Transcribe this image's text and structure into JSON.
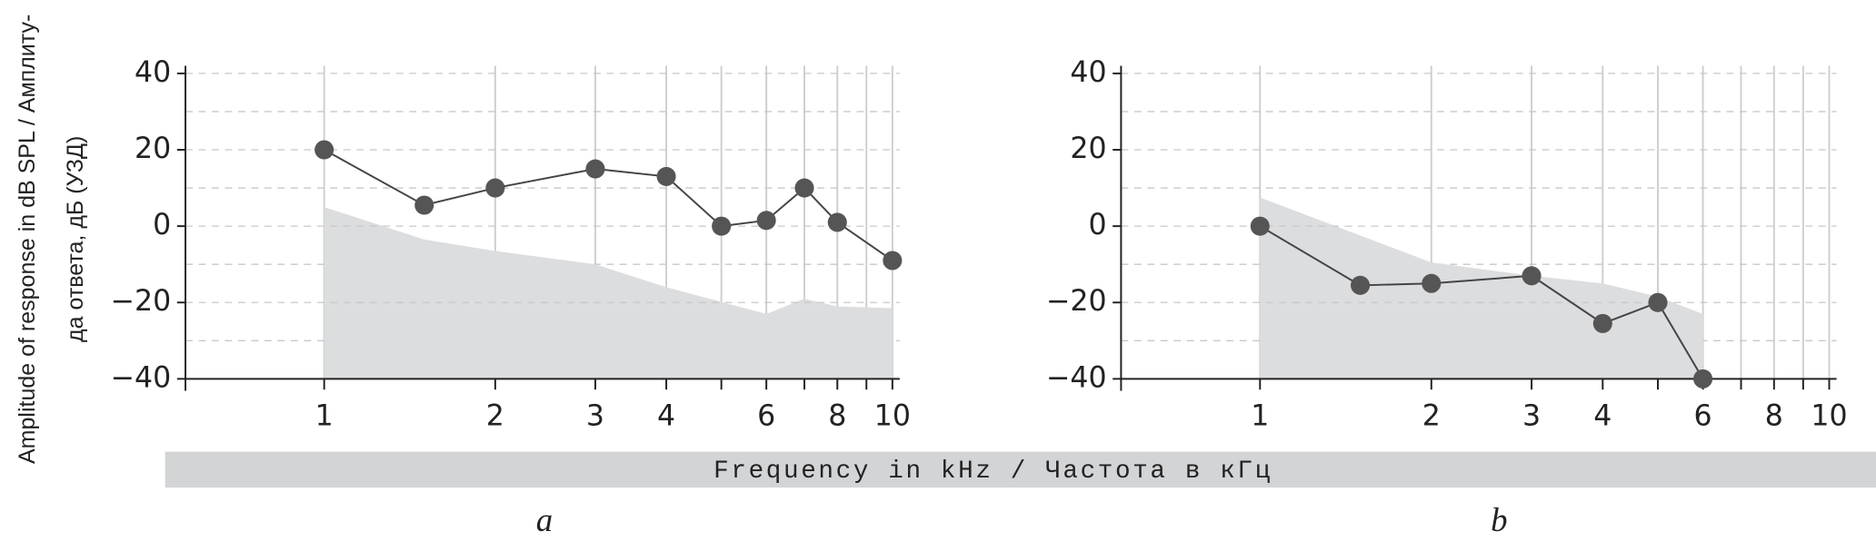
{
  "ylabel": [
    "Amplitude of response in dB SPL / Амплиту-",
    "да ответа, дБ (УЗД)"
  ],
  "xlabel": "Frequency in kHz / Частота в кГц",
  "chart_data": [
    {
      "type": "line",
      "label": "a",
      "log_x": true,
      "grid": true,
      "xlim": [
        0.57,
        10.3
      ],
      "xticks": [
        1,
        2,
        3,
        4,
        6,
        8,
        10
      ],
      "xminor": [
        5,
        7,
        9
      ],
      "ylim": [
        -40,
        42
      ],
      "yticks": [
        40,
        20,
        0,
        {
          "value": -20,
          "label": "−20"
        },
        {
          "value": -40,
          "label": "−40"
        }
      ],
      "yminor": [
        30,
        10,
        -10,
        -30
      ],
      "series": [
        {
          "kind": "area",
          "color": "#dcdddf",
          "x": [
            1,
            1.5,
            2,
            3,
            4,
            6,
            7,
            8,
            10
          ],
          "values": [
            5,
            -3.5,
            -6.5,
            -10,
            -16,
            -23,
            -19,
            -21,
            -21.5
          ]
        },
        {
          "kind": "line",
          "color": "#555555",
          "x": [
            1,
            1.5,
            2,
            3,
            4,
            5,
            6,
            7,
            8,
            10
          ],
          "values": [
            20,
            5.5,
            10,
            15,
            13,
            0,
            1.5,
            10,
            1,
            -9
          ]
        }
      ]
    },
    {
      "type": "line",
      "label": "b",
      "log_x": true,
      "grid": true,
      "xlim": [
        0.57,
        10.3
      ],
      "xticks": [
        1,
        2,
        3,
        4,
        6,
        8,
        10
      ],
      "xminor": [
        5,
        7,
        9
      ],
      "ylim": [
        -40,
        42
      ],
      "yticks": [
        40,
        20,
        0,
        {
          "value": -20,
          "label": "−20"
        },
        {
          "value": -40,
          "label": "−40"
        }
      ],
      "yminor": [
        30,
        10,
        -10,
        -30
      ],
      "series": [
        {
          "kind": "area",
          "color": "#dcdddf",
          "x": [
            1,
            2,
            3,
            4,
            5,
            6
          ],
          "values": [
            7.5,
            -9.5,
            -13,
            -15,
            -18.5,
            -23
          ]
        },
        {
          "kind": "line",
          "color": "#555555",
          "x": [
            1,
            1.5,
            2,
            3,
            4,
            5,
            6
          ],
          "values": [
            0,
            -15.5,
            -15,
            -13,
            -25.5,
            -20,
            -40
          ]
        }
      ]
    }
  ]
}
